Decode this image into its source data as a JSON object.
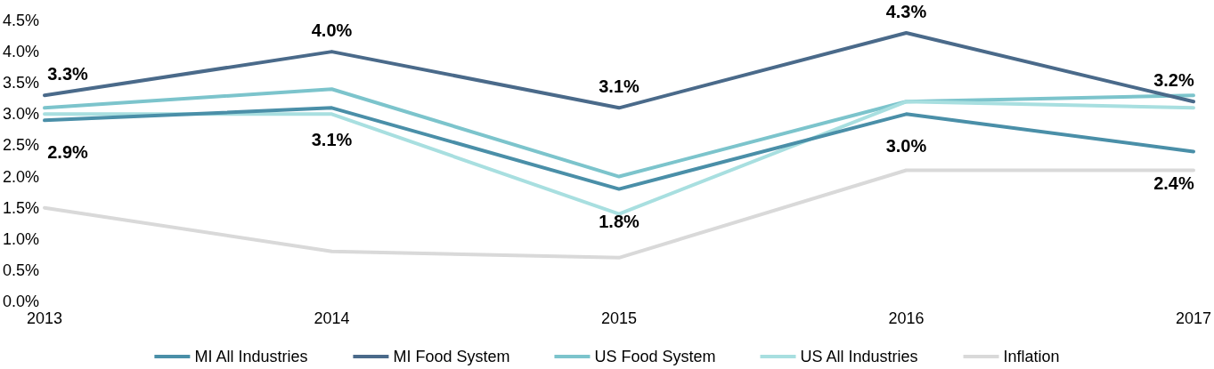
{
  "chart_data": {
    "type": "line",
    "categories": [
      "2013",
      "2014",
      "2015",
      "2016",
      "2017"
    ],
    "series": [
      {
        "name": "MI All Industries",
        "color": "#4a8fa8",
        "values": [
          2.9,
          3.1,
          1.8,
          3.0,
          2.4
        ],
        "value_labels": [
          "2.9%",
          "3.1%",
          "1.8%",
          "3.0%",
          "2.4%"
        ]
      },
      {
        "name": "MI Food System",
        "color": "#4a6a8a",
        "values": [
          3.3,
          4.0,
          3.1,
          4.3,
          3.2
        ],
        "value_labels": [
          "3.3%",
          "4.0%",
          "3.1%",
          "4.3%",
          "3.2%"
        ]
      },
      {
        "name": "US Food System",
        "color": "#7cc4cc",
        "values": [
          3.1,
          3.4,
          2.0,
          3.2,
          3.3
        ]
      },
      {
        "name": "US All Industries",
        "color": "#a8dfe0",
        "values": [
          3.0,
          3.0,
          1.4,
          3.2,
          3.1
        ]
      },
      {
        "name": "Inflation",
        "color": "#d9d9d9",
        "values": [
          1.5,
          0.8,
          0.7,
          2.1,
          2.1
        ]
      }
    ],
    "ylim": [
      0,
      4.5
    ],
    "yticks": [
      {
        "value": 0,
        "label": "0.0%"
      },
      {
        "value": 0.5,
        "label": "0.5%"
      },
      {
        "value": 1,
        "label": "1.0%"
      },
      {
        "value": 1.5,
        "label": "1.5%"
      },
      {
        "value": 2,
        "label": "2.0%"
      },
      {
        "value": 2.5,
        "label": "2.5%"
      },
      {
        "value": 3,
        "label": "3.0%"
      },
      {
        "value": 3.5,
        "label": "3.5%"
      },
      {
        "value": 4,
        "label": "4.0%"
      },
      {
        "value": 4.5,
        "label": "4.5%"
      }
    ],
    "grid": false,
    "legend": "bottom",
    "marker": "none",
    "line_style": "solid"
  }
}
